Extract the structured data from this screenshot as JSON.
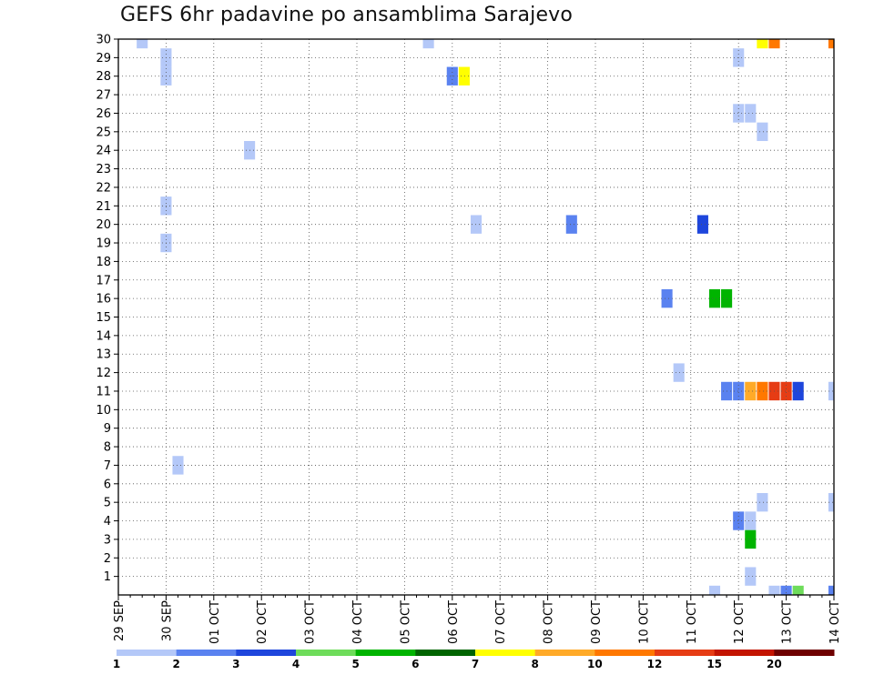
{
  "chart_data": {
    "type": "heatmap",
    "title": "GEFS 6hr padavine po ansamblima Sarajevo",
    "x_tick_labels": [
      "29 SEP",
      "30 SEP",
      "01 OCT",
      "02 OCT",
      "03 OCT",
      "04 OCT",
      "05 OCT",
      "06 OCT",
      "07 OCT",
      "08 OCT",
      "09 OCT",
      "10 OCT",
      "11 OCT",
      "12 OCT",
      "13 OCT",
      "14 OCT"
    ],
    "y_tick_labels": [
      "1",
      "2",
      "3",
      "4",
      "5",
      "6",
      "7",
      "8",
      "9",
      "10",
      "11",
      "12",
      "13",
      "14",
      "15",
      "16",
      "17",
      "18",
      "19",
      "20",
      "21",
      "22",
      "23",
      "24",
      "25",
      "26",
      "27",
      "28",
      "29",
      "30"
    ],
    "ylim": [
      0,
      30
    ],
    "grid": true,
    "colorbar": {
      "labels": [
        "1",
        "2",
        "3",
        "4",
        "5",
        "6",
        "7",
        "8",
        "10",
        "12",
        "15",
        "20"
      ],
      "colors": [
        "#b4c8f8",
        "#5a82f0",
        "#1e46dc",
        "#6edc5a",
        "#00b400",
        "#006400",
        "#ffff00",
        "#ffaa28",
        "#ff7800",
        "#e63c14",
        "#c31400",
        "#6e0000"
      ]
    },
    "cells": [
      {
        "date": "29 SEP",
        "hour": 12,
        "member": 30,
        "level": 1
      },
      {
        "date": "30 SEP",
        "hour": 0,
        "member": 29,
        "level": 1
      },
      {
        "date": "30 SEP",
        "hour": 0,
        "member": 28,
        "level": 1
      },
      {
        "date": "01 OCT",
        "hour": 18,
        "member": 24,
        "level": 1
      },
      {
        "date": "30 SEP",
        "hour": 0,
        "member": 21,
        "level": 1
      },
      {
        "date": "30 SEP",
        "hour": 0,
        "member": 19,
        "level": 1
      },
      {
        "date": "30 SEP",
        "hour": 6,
        "member": 7,
        "level": 1
      },
      {
        "date": "05 OCT",
        "hour": 12,
        "member": 30,
        "level": 1
      },
      {
        "date": "06 OCT",
        "hour": 0,
        "member": 28,
        "level": 2
      },
      {
        "date": "06 OCT",
        "hour": 6,
        "member": 28,
        "level": 7
      },
      {
        "date": "06 OCT",
        "hour": 12,
        "member": 20,
        "level": 1
      },
      {
        "date": "08 OCT",
        "hour": 12,
        "member": 20,
        "level": 2
      },
      {
        "date": "10 OCT",
        "hour": 12,
        "member": 16,
        "level": 2
      },
      {
        "date": "10 OCT",
        "hour": 18,
        "member": 12,
        "level": 1
      },
      {
        "date": "11 OCT",
        "hour": 6,
        "member": 20,
        "level": 3
      },
      {
        "date": "11 OCT",
        "hour": 12,
        "member": 16,
        "level": 5
      },
      {
        "date": "11 OCT",
        "hour": 18,
        "member": 16,
        "level": 5
      },
      {
        "date": "11 OCT",
        "hour": 12,
        "member": 0,
        "level": 1
      },
      {
        "date": "11 OCT",
        "hour": 18,
        "member": 11,
        "level": 2
      },
      {
        "date": "12 OCT",
        "hour": 0,
        "member": 11,
        "level": 2
      },
      {
        "date": "12 OCT",
        "hour": 0,
        "member": 29,
        "level": 1
      },
      {
        "date": "12 OCT",
        "hour": 0,
        "member": 26,
        "level": 1
      },
      {
        "date": "12 OCT",
        "hour": 6,
        "member": 26,
        "level": 1
      },
      {
        "date": "12 OCT",
        "hour": 12,
        "member": 25,
        "level": 1
      },
      {
        "date": "12 OCT",
        "hour": 0,
        "member": 4,
        "level": 2
      },
      {
        "date": "12 OCT",
        "hour": 6,
        "member": 4,
        "level": 1
      },
      {
        "date": "12 OCT",
        "hour": 6,
        "member": 11,
        "level": 8
      },
      {
        "date": "12 OCT",
        "hour": 12,
        "member": 11,
        "level": 10
      },
      {
        "date": "12 OCT",
        "hour": 18,
        "member": 11,
        "level": 12
      },
      {
        "date": "13 OCT",
        "hour": 0,
        "member": 11,
        "level": 12
      },
      {
        "date": "13 OCT",
        "hour": 6,
        "member": 11,
        "level": 3
      },
      {
        "date": "14 OCT",
        "hour": 0,
        "member": 11,
        "level": 1
      },
      {
        "date": "12 OCT",
        "hour": 6,
        "member": 3,
        "level": 5
      },
      {
        "date": "12 OCT",
        "hour": 12,
        "member": 5,
        "level": 1
      },
      {
        "date": "12 OCT",
        "hour": 6,
        "member": 1,
        "level": 1
      },
      {
        "date": "12 OCT",
        "hour": 12,
        "member": 30,
        "level": 7
      },
      {
        "date": "12 OCT",
        "hour": 18,
        "member": 30,
        "level": 10
      },
      {
        "date": "14 OCT",
        "hour": 0,
        "member": 30,
        "level": 10
      },
      {
        "date": "14 OCT",
        "hour": 0,
        "member": 5,
        "level": 1
      },
      {
        "date": "12 OCT",
        "hour": 18,
        "member": 0,
        "level": 1
      },
      {
        "date": "13 OCT",
        "hour": 0,
        "member": 0,
        "level": 2
      },
      {
        "date": "13 OCT",
        "hour": 6,
        "member": 0,
        "level": 4
      },
      {
        "date": "14 OCT",
        "hour": 0,
        "member": 0,
        "level": 2
      }
    ]
  }
}
